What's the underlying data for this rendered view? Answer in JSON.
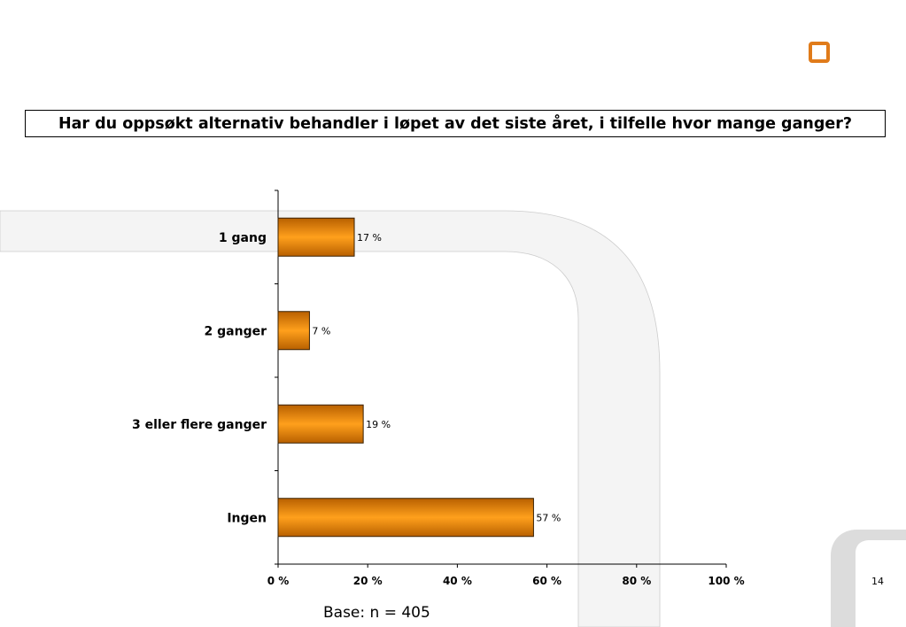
{
  "title": "Har du oppsøkt alternativ behandler i løpet av det siste året, i tilfelle hvor mange ganger?",
  "footnote": "Base: n = 405",
  "page_number": "14",
  "colors": {
    "bar_light": "#ffa01c",
    "bar_dark": "#b86000",
    "logo": "#e07b1a",
    "decor": "#f4f4f4"
  },
  "chart_data": {
    "type": "bar",
    "orientation": "horizontal",
    "categories": [
      "1 gang",
      "2 ganger",
      "3 eller flere ganger",
      "Ingen"
    ],
    "values": [
      17,
      7,
      19,
      57
    ],
    "value_labels": [
      "17 %",
      "7 %",
      "19 %",
      "57 %"
    ],
    "xlim": [
      0,
      100
    ],
    "xticks": [
      0,
      20,
      40,
      60,
      80,
      100
    ],
    "xtick_labels": [
      "0 %",
      "20 %",
      "40 %",
      "60 %",
      "80 %",
      "100 %"
    ],
    "grid": false,
    "legend": "none"
  }
}
